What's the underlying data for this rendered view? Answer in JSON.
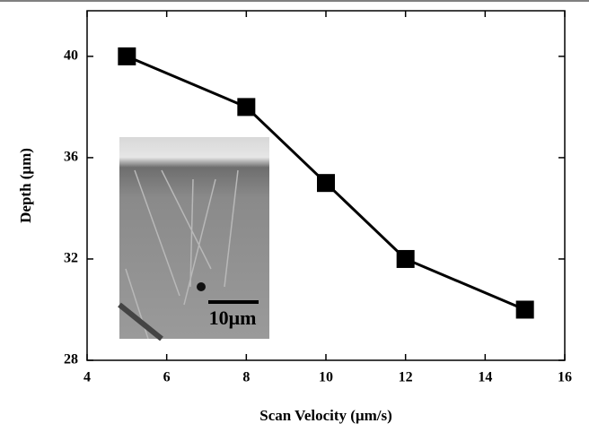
{
  "chart_data": {
    "type": "line",
    "x_label": "Scan Velocity (μm/s)",
    "y_label": "Depth (μm)",
    "x": [
      5,
      8,
      10,
      12,
      15
    ],
    "values": [
      40,
      38,
      35,
      32,
      30
    ],
    "color": "#000000",
    "xlim": [
      4,
      16
    ],
    "xticks": [
      4,
      6,
      8,
      10,
      12,
      14,
      16
    ],
    "ylim": [
      28,
      41.8
    ],
    "yticks": [
      28,
      32,
      36,
      40
    ],
    "inset_scale_label": "10μm"
  }
}
